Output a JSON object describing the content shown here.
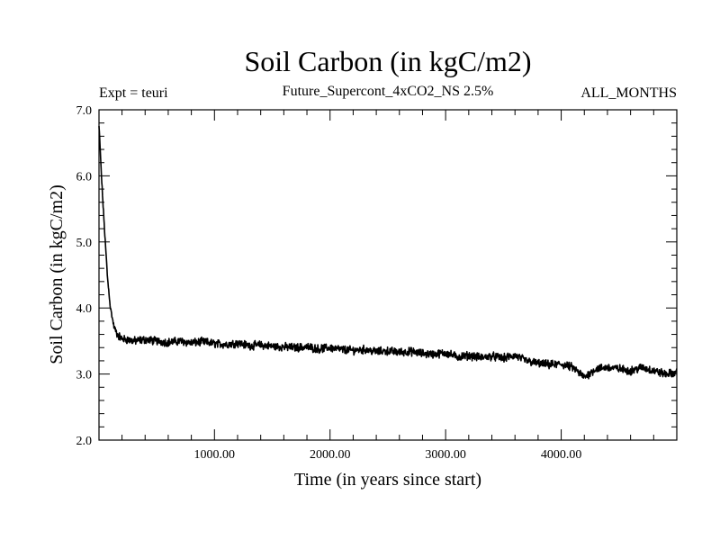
{
  "chart_data": {
    "type": "line",
    "title": "Soil Carbon (in kgC/m2)",
    "subtitle_left": "Expt = teuri",
    "subtitle_center": "Future_Supercont_4xCO2_NS 2.5%",
    "subtitle_right": "ALL_MONTHS",
    "xlabel": "Time (in years since start)",
    "ylabel": "Soil Carbon (in kgC/m2)",
    "xlim": [
      1,
      5000
    ],
    "ylim": [
      2.0,
      7.0
    ],
    "grid": false,
    "legend": "none",
    "line_color": "#000000",
    "x_ticks": [
      1000,
      2000,
      3000,
      4000
    ],
    "x_tick_labels": [
      "1000.00",
      "2000.00",
      "3000.00",
      "4000.00"
    ],
    "y_ticks": [
      2.0,
      3.0,
      4.0,
      5.0,
      6.0,
      7.0
    ],
    "y_tick_labels": [
      "2.0",
      "3.0",
      "4.0",
      "5.0",
      "6.0",
      "7.0"
    ],
    "series": [
      {
        "x": [
          1,
          10,
          25,
          50,
          75,
          100,
          130,
          160,
          200,
          250,
          300,
          400,
          500,
          600,
          700,
          800,
          900,
          1000,
          1100,
          1200,
          1300,
          1400,
          1500,
          1600,
          1700,
          1800,
          1900,
          2000,
          2100,
          2200,
          2300,
          2400,
          2500,
          2600,
          2700,
          2800,
          2900,
          3000,
          3100,
          3200,
          3300,
          3400,
          3500,
          3600,
          3700,
          3800,
          3900,
          4000,
          4100,
          4200,
          4300,
          4400,
          4500,
          4600,
          4700,
          4800,
          4900,
          5000
        ],
        "y": [
          6.75,
          6.45,
          5.9,
          5.15,
          4.45,
          4.0,
          3.72,
          3.6,
          3.53,
          3.52,
          3.5,
          3.52,
          3.5,
          3.48,
          3.5,
          3.47,
          3.49,
          3.46,
          3.45,
          3.47,
          3.43,
          3.44,
          3.42,
          3.41,
          3.4,
          3.41,
          3.38,
          3.4,
          3.37,
          3.36,
          3.37,
          3.34,
          3.35,
          3.33,
          3.34,
          3.31,
          3.3,
          3.32,
          3.26,
          3.28,
          3.25,
          3.27,
          3.24,
          3.28,
          3.2,
          3.16,
          3.14,
          3.15,
          3.1,
          2.95,
          3.08,
          3.1,
          3.08,
          3.05,
          3.1,
          3.05,
          3.0,
          3.02
        ]
      }
    ]
  }
}
